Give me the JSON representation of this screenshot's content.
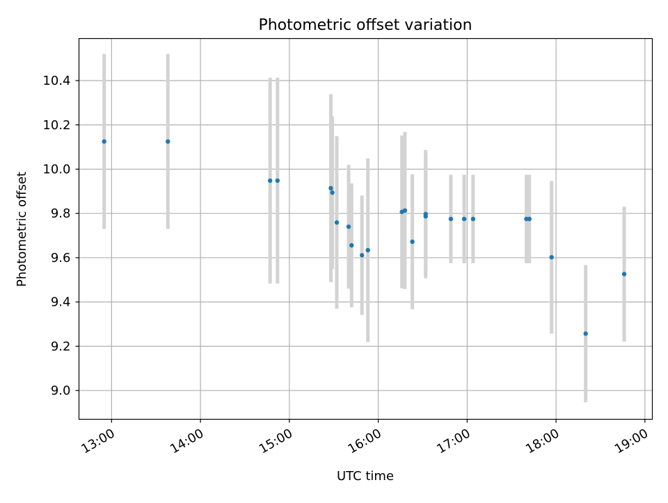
{
  "chart_data": {
    "type": "scatter",
    "title": "Photometric offset variation",
    "xlabel": "UTC time",
    "ylabel": "Photometric offset",
    "xlim": [
      "12:38",
      "19:05"
    ],
    "ylim": [
      8.87,
      10.59
    ],
    "grid": true,
    "x_ticks": [
      "13:00",
      "14:00",
      "15:00",
      "16:00",
      "17:00",
      "18:00",
      "19:00"
    ],
    "y_ticks": [
      "9.0",
      "9.2",
      "9.4",
      "9.6",
      "9.8",
      "10.0",
      "10.2",
      "10.4"
    ],
    "point_color": "#1f77b4",
    "errorbar_color": "#d3d3d3",
    "series": [
      {
        "points": [
          {
            "x": "12:55",
            "y": 10.125,
            "err": 0.395
          },
          {
            "x": "13:38",
            "y": 10.125,
            "err": 0.395
          },
          {
            "x": "14:47",
            "y": 9.948,
            "err": 0.465
          },
          {
            "x": "14:52",
            "y": 9.948,
            "err": 0.465
          },
          {
            "x": "15:28",
            "y": 9.914,
            "err": 0.425
          },
          {
            "x": "15:29",
            "y": 9.894,
            "err": 0.345
          },
          {
            "x": "15:32",
            "y": 9.759,
            "err": 0.39
          },
          {
            "x": "15:40",
            "y": 9.74,
            "err": 0.28
          },
          {
            "x": "15:42",
            "y": 9.656,
            "err": 0.28
          },
          {
            "x": "15:49",
            "y": 9.611,
            "err": 0.27
          },
          {
            "x": "15:53",
            "y": 9.634,
            "err": 0.415
          },
          {
            "x": "16:16",
            "y": 9.807,
            "err": 0.345
          },
          {
            "x": "16:18",
            "y": 9.813,
            "err": 0.355
          },
          {
            "x": "16:23",
            "y": 9.672,
            "err": 0.305
          },
          {
            "x": "16:32",
            "y": 9.797,
            "err": 0.29
          },
          {
            "x": "16:32",
            "y": 9.787,
            "err": 0.27
          },
          {
            "x": "16:49",
            "y": 9.775,
            "err": 0.2
          },
          {
            "x": "16:58",
            "y": 9.775,
            "err": 0.2
          },
          {
            "x": "17:04",
            "y": 9.775,
            "err": 0.2
          },
          {
            "x": "17:40",
            "y": 9.775,
            "err": 0.2
          },
          {
            "x": "17:42",
            "y": 9.775,
            "err": 0.2
          },
          {
            "x": "17:57",
            "y": 9.602,
            "err": 0.345
          },
          {
            "x": "18:20",
            "y": 9.257,
            "err": 0.31
          },
          {
            "x": "18:46",
            "y": 9.526,
            "err": 0.305
          }
        ]
      }
    ]
  }
}
